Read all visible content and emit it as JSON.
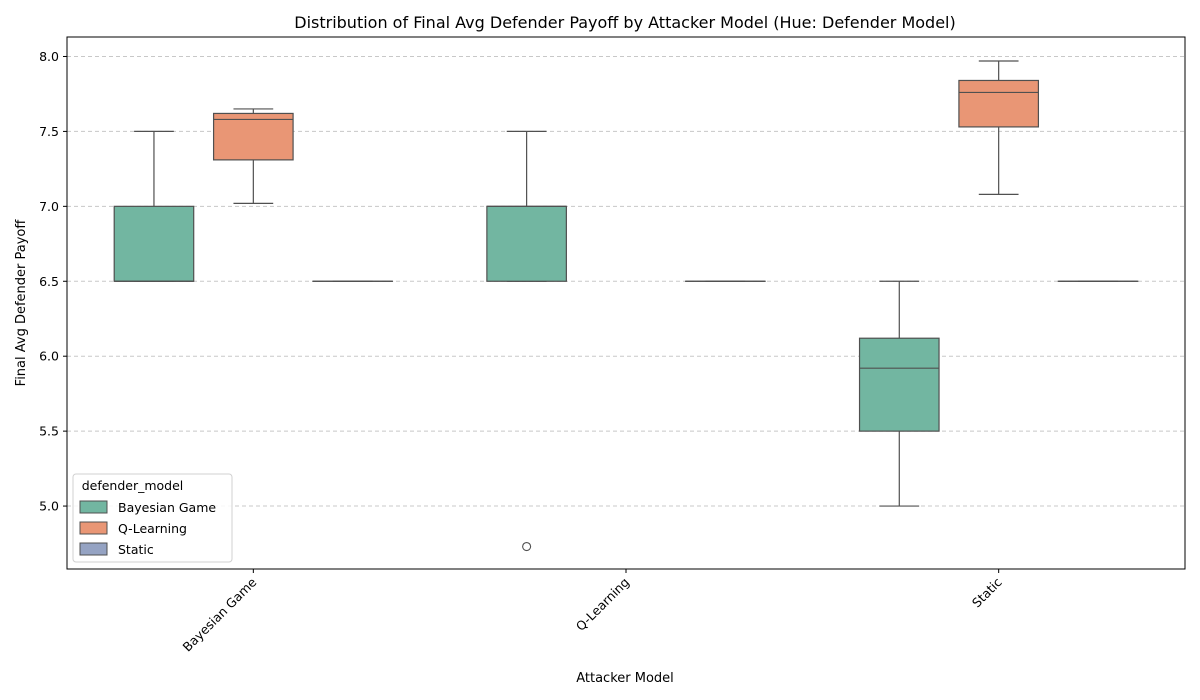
{
  "chart_data": {
    "type": "box",
    "title": "Distribution of Final Avg Defender Payoff by Attacker Model (Hue: Defender Model)",
    "xlabel": "Attacker Model",
    "ylabel": "Final Avg Defender Payoff",
    "categories": [
      "Bayesian Game",
      "Q-Learning",
      "Static"
    ],
    "ylim": [
      4.58,
      8.13
    ],
    "yticks": [
      5.0,
      5.5,
      6.0,
      6.5,
      7.0,
      7.5,
      8.0
    ],
    "ytick_labels": [
      "5.0",
      "5.5",
      "6.0",
      "6.5",
      "7.0",
      "7.5",
      "8.0"
    ],
    "grid": "y-dashed",
    "legend": {
      "title": "defender_model",
      "placement": "lower-left",
      "entries": [
        "Bayesian Game",
        "Q-Learning",
        "Static"
      ]
    },
    "series": [
      {
        "name": "Bayesian Game",
        "color": "#72b6a1",
        "boxes": [
          {
            "category": "Bayesian Game",
            "whislo": 6.5,
            "q1": 6.5,
            "med": 6.5,
            "q3": 7.0,
            "whishi": 7.5,
            "fliers": []
          },
          {
            "category": "Q-Learning",
            "whislo": 6.5,
            "q1": 6.5,
            "med": 7.0,
            "q3": 7.0,
            "whishi": 7.5,
            "fliers": [
              4.73
            ]
          },
          {
            "category": "Static",
            "whislo": 5.0,
            "q1": 5.5,
            "med": 5.92,
            "q3": 6.12,
            "whishi": 6.5,
            "fliers": []
          }
        ]
      },
      {
        "name": "Q-Learning",
        "color": "#e99675",
        "boxes": [
          {
            "category": "Bayesian Game",
            "whislo": 7.02,
            "q1": 7.31,
            "med": 7.58,
            "q3": 7.62,
            "whishi": 7.65,
            "fliers": []
          },
          {
            "category": "Static",
            "whislo": 7.08,
            "q1": 7.53,
            "med": 7.76,
            "q3": 7.84,
            "whishi": 7.97,
            "fliers": []
          }
        ]
      },
      {
        "name": "Static",
        "color": "#95a3c3",
        "boxes": [
          {
            "category": "Bayesian Game",
            "whislo": 6.5,
            "q1": 6.5,
            "med": 6.5,
            "q3": 6.5,
            "whishi": 6.5,
            "fliers": []
          },
          {
            "category": "Q-Learning",
            "whislo": 6.5,
            "q1": 6.5,
            "med": 6.5,
            "q3": 6.5,
            "whishi": 6.5,
            "fliers": []
          },
          {
            "category": "Static",
            "whislo": 6.5,
            "q1": 6.5,
            "med": 6.5,
            "q3": 6.5,
            "whishi": 6.5,
            "fliers": []
          }
        ]
      }
    ]
  }
}
